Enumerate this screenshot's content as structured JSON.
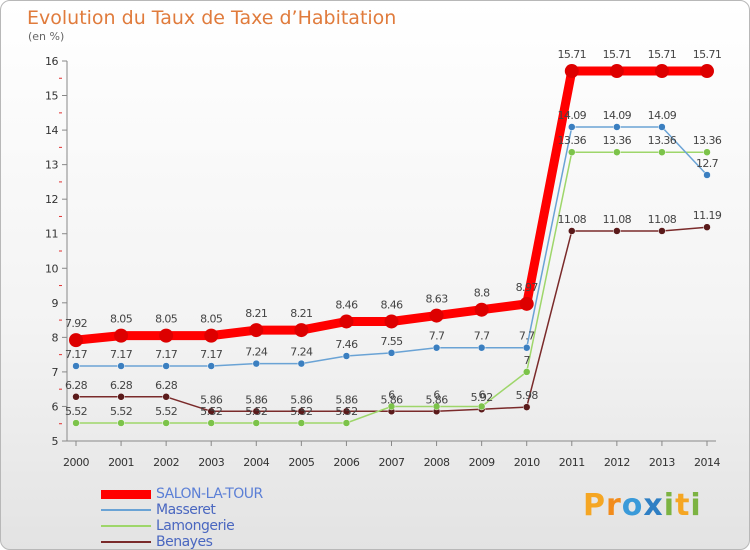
{
  "title": "Evolution du Taux de Taxe d’Habitation",
  "unit": "(en %)",
  "brand": {
    "letters": [
      {
        "ch": "P",
        "color": "#f5a623"
      },
      {
        "ch": "r",
        "color": "#f28c1c"
      },
      {
        "ch": "o",
        "color": "#3a9ad9"
      },
      {
        "ch": "x",
        "color": "#2f7fc4"
      },
      {
        "ch": "i",
        "color": "#7cb342"
      },
      {
        "ch": "t",
        "color": "#f5a623"
      },
      {
        "ch": "i",
        "color": "#7cb342"
      }
    ]
  },
  "chart_data": {
    "type": "line",
    "x": [
      "2000",
      "2001",
      "2002",
      "2003",
      "2004",
      "2005",
      "2006",
      "2007",
      "2008",
      "2009",
      "2010",
      "2011",
      "2012",
      "2013",
      "2014"
    ],
    "ylim": [
      5,
      16
    ],
    "yticks": [
      5,
      6,
      7,
      8,
      9,
      10,
      11,
      12,
      13,
      14,
      15,
      16
    ],
    "grid": false,
    "legend_position": "bottom-left",
    "series": [
      {
        "name": "SALON-LA-TOUR",
        "color": "#ff0000",
        "point_color": "#dd0000",
        "width": 9,
        "marker": 7,
        "values": [
          7.92,
          8.05,
          8.05,
          8.05,
          8.21,
          8.21,
          8.46,
          8.46,
          8.63,
          8.8,
          8.97,
          15.71,
          15.71,
          15.71,
          15.71
        ],
        "labels": [
          "7.92",
          "8.05",
          "8.05",
          "8.05",
          "8.21",
          "8.21",
          "8.46",
          "8.46",
          "8.63",
          "8.8",
          "8.97",
          "15.71",
          "15.71",
          "15.71",
          "15.71"
        ]
      },
      {
        "name": "Masseret",
        "color": "#6aa3d5",
        "point_color": "#3b7fc0",
        "width": 1.5,
        "marker": 3.5,
        "values": [
          7.17,
          7.17,
          7.17,
          7.17,
          7.24,
          7.24,
          7.46,
          7.55,
          7.7,
          7.7,
          7.7,
          14.09,
          14.09,
          14.09,
          12.7
        ],
        "labels": [
          "7.17",
          "7.17",
          "7.17",
          "7.17",
          "7.24",
          "7.24",
          "7.46",
          "7.55",
          "7.7",
          "7.7",
          "7.7",
          "14.09",
          "14.09",
          "14.09",
          "12.7"
        ]
      },
      {
        "name": "Lamongerie",
        "color": "#9ed66a",
        "point_color": "#7cc34a",
        "width": 1.5,
        "marker": 3.5,
        "values": [
          5.52,
          5.52,
          5.52,
          5.52,
          5.52,
          5.52,
          5.52,
          6,
          6,
          6,
          7,
          13.36,
          13.36,
          13.36,
          13.36
        ],
        "labels": [
          "5.52",
          "5.52",
          "5.52",
          "5.52",
          "5.52",
          "5.52",
          "5.52",
          "6",
          "6",
          "6",
          "7",
          "13.36",
          "13.36",
          "13.36",
          "13.36"
        ]
      },
      {
        "name": "Benayes",
        "color": "#7a2a2a",
        "point_color": "#5a1a1a",
        "width": 1.5,
        "marker": 3.5,
        "values": [
          6.28,
          6.28,
          6.28,
          5.86,
          5.86,
          5.86,
          5.86,
          5.86,
          5.86,
          5.92,
          5.98,
          11.08,
          11.08,
          11.08,
          11.19
        ],
        "labels": [
          "6.28",
          "6.28",
          "6.28",
          "5.86",
          "5.86",
          "5.86",
          "5.86",
          "5.86",
          "5.86",
          "5.92",
          "5.98",
          "11.08",
          "11.08",
          "11.08",
          "11.19"
        ]
      }
    ]
  }
}
